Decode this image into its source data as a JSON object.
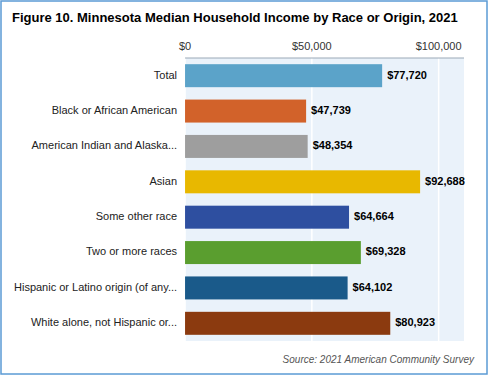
{
  "chart_data": {
    "type": "bar",
    "orientation": "horizontal",
    "title": "Figure 10. Minnesota Median Household Income by Race or Origin, 2021",
    "annotations": [
      "Source: 2021 American Community Survey"
    ],
    "categories": [
      "White alone, not Hispanic or...",
      "Hispanic or Latino origin (of any...",
      "Two or more races",
      "Some other race",
      "Asian",
      "American Indian and Alaska...",
      "Black or African American",
      "Total"
    ],
    "values": [
      80923,
      64102,
      69328,
      64664,
      92688,
      48354,
      47739,
      77720
    ],
    "value_labels": [
      "$80,923",
      "$64,102",
      "$69,328",
      "$64,664",
      "$92,688",
      "$48,354",
      "$47,739",
      "$77,720"
    ],
    "colors": [
      "#8B3A0F",
      "#1A5A8A",
      "#5A9E2F",
      "#2E4FA0",
      "#E8B800",
      "#9E9E9E",
      "#D2622A",
      "#5BA3C9"
    ],
    "xlim": [
      0,
      110000
    ],
    "xticks": [
      {
        "value": 0,
        "label": "$0"
      },
      {
        "value": 50000,
        "label": "$50,000"
      },
      {
        "value": 100000,
        "label": "$100,000"
      }
    ],
    "grid": true,
    "data_labels": true
  }
}
